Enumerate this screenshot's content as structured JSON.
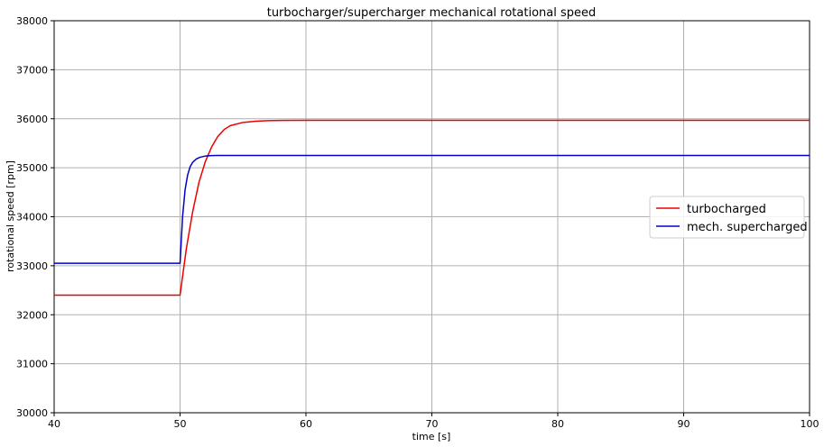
{
  "chart_data": {
    "type": "line",
    "title": "turbocharger/supercharger mechanical rotational speed",
    "xlabel": "time [s]",
    "ylabel": "rotational speed [rpm]",
    "xlim": [
      40,
      100
    ],
    "ylim": [
      30000,
      38000
    ],
    "xticks": [
      40,
      50,
      60,
      70,
      80,
      90,
      100
    ],
    "yticks": [
      30000,
      31000,
      32000,
      33000,
      34000,
      35000,
      36000,
      37000,
      38000
    ],
    "grid": true,
    "legend_position": "center-right",
    "series": [
      {
        "name": "turbocharged",
        "color": "#ee0000",
        "x": [
          40,
          50,
          50.5,
          51,
          51.5,
          52,
          52.5,
          53,
          53.5,
          54,
          55,
          56,
          57,
          58,
          60,
          70,
          80,
          90,
          100
        ],
        "y": [
          32400,
          32400,
          33350,
          34100,
          34700,
          35120,
          35420,
          35640,
          35780,
          35860,
          35925,
          35950,
          35960,
          35965,
          35968,
          35968,
          35968,
          35968,
          35968
        ]
      },
      {
        "name": "mech. supercharged",
        "color": "#0000cc",
        "x": [
          40,
          50,
          50.2,
          50.4,
          50.6,
          50.8,
          51,
          51.3,
          51.6,
          52,
          52.5,
          53,
          55,
          60,
          70,
          80,
          90,
          100
        ],
        "y": [
          33050,
          33050,
          34000,
          34550,
          34850,
          35020,
          35110,
          35180,
          35215,
          35238,
          35248,
          35250,
          35250,
          35250,
          35250,
          35250,
          35250,
          35250
        ]
      }
    ]
  }
}
